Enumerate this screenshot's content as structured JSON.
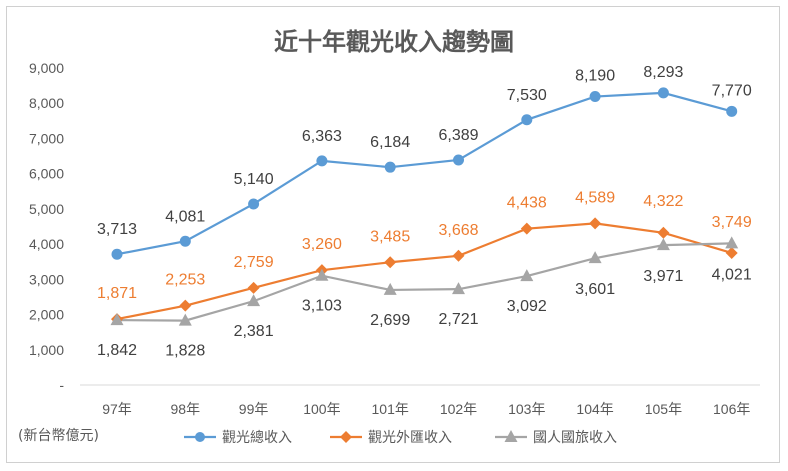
{
  "chart_data": {
    "type": "line",
    "title": "近十年觀光收入趨勢圖",
    "unit_note": "(新台幣億元)",
    "categories": [
      "97年",
      "98年",
      "99年",
      "100年",
      "101年",
      "102年",
      "103年",
      "104年",
      "105年",
      "106年"
    ],
    "ylim": [
      0,
      9000
    ],
    "yticks": [
      "-",
      "1,000",
      "2,000",
      "3,000",
      "4,000",
      "5,000",
      "6,000",
      "7,000",
      "8,000",
      "9,000"
    ],
    "grid": false,
    "legend_position": "bottom",
    "series": [
      {
        "name": "觀光總收入",
        "color": "#5b9bd5",
        "marker": "circle",
        "values": [
          3713,
          4081,
          5140,
          6363,
          6184,
          6389,
          7530,
          8190,
          8293,
          7770
        ],
        "labels": [
          "3,713",
          "4,081",
          "5,140",
          "6,363",
          "6,184",
          "6,389",
          "7,530",
          "8,190",
          "8,293",
          "7,770"
        ]
      },
      {
        "name": "觀光外匯收入",
        "color": "#ed7d31",
        "marker": "diamond",
        "values": [
          1871,
          2253,
          2759,
          3260,
          3485,
          3668,
          4438,
          4589,
          4322,
          3749
        ],
        "labels": [
          "1,871",
          "2,253",
          "2,759",
          "3,260",
          "3,485",
          "3,668",
          "4,438",
          "4,589",
          "4,322",
          "3,749"
        ]
      },
      {
        "name": "國人國旅收入",
        "color": "#a5a5a5",
        "marker": "triangle",
        "values": [
          1842,
          1828,
          2381,
          3103,
          2699,
          2721,
          3092,
          3601,
          3971,
          4021
        ],
        "labels": [
          "1,842",
          "1,828",
          "2,381",
          "3,103",
          "2,699",
          "2,721",
          "3,092",
          "3,601",
          "3,971",
          "4,021"
        ]
      }
    ]
  }
}
